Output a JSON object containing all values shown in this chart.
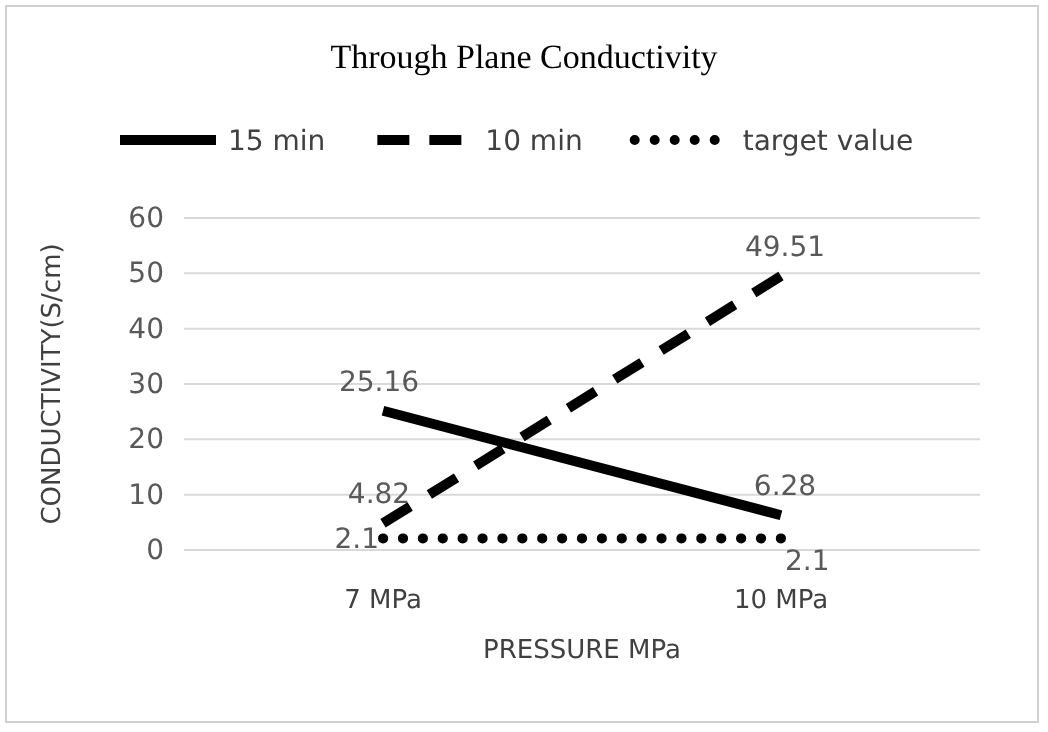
{
  "chart_data": {
    "type": "line",
    "title": "Through Plane Conductivity",
    "xlabel": "PRESSURE MPa",
    "ylabel": "CONDUCTIVITY(S/cm)",
    "categories": [
      "7 MPa",
      "10 MPa"
    ],
    "series": [
      {
        "name": "15 min",
        "color": "#000000",
        "line_style": "solid",
        "values": [
          25.16,
          6.28
        ]
      },
      {
        "name": "10 min",
        "color": "#000000",
        "line_style": "dashed",
        "values": [
          4.82,
          49.51
        ]
      },
      {
        "name": "target value",
        "color": "#000000",
        "line_style": "dotted",
        "values": [
          2.1,
          2.1
        ]
      }
    ],
    "ylim": [
      0,
      60
    ],
    "yticks": [
      0,
      10,
      20,
      30,
      40,
      50,
      60
    ],
    "grid": "y",
    "legend": "top",
    "data_labels": true,
    "marker": "none"
  }
}
